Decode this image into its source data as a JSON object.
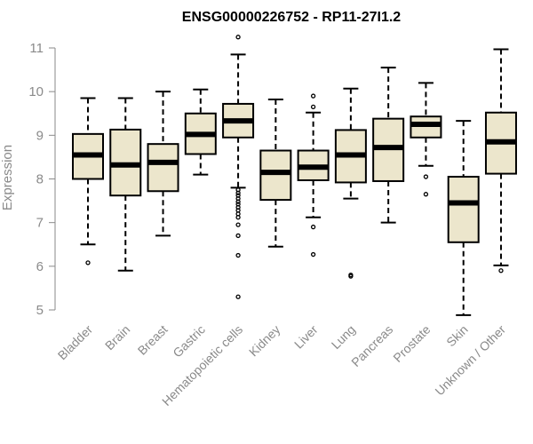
{
  "chart_data": {
    "type": "box",
    "title": "ENSG00000226752 - RP11-27I1.2",
    "xlabel": "",
    "ylabel": "Expression",
    "ylim": [
      4.8,
      11.2
    ],
    "yticks": [
      5,
      6,
      7,
      8,
      9,
      10,
      11
    ],
    "categories": [
      "Bladder",
      "Brain",
      "Breast",
      "Gastric",
      "Hematopoietic cells",
      "Kidney",
      "Liver",
      "Lung",
      "Pancreas",
      "Prostate",
      "Skin",
      "Unknown / Other"
    ],
    "series": [
      {
        "category": "Bladder",
        "whisker_low": 6.5,
        "q1": 8.0,
        "median": 8.55,
        "q3": 9.03,
        "whisker_high": 9.85,
        "outliers": [
          6.08
        ]
      },
      {
        "category": "Brain",
        "whisker_low": 5.9,
        "q1": 7.62,
        "median": 8.32,
        "q3": 9.13,
        "whisker_high": 9.85,
        "outliers": []
      },
      {
        "category": "Breast",
        "whisker_low": 6.7,
        "q1": 7.72,
        "median": 8.38,
        "q3": 8.8,
        "whisker_high": 10.0,
        "outliers": []
      },
      {
        "category": "Gastric",
        "whisker_low": 8.1,
        "q1": 8.57,
        "median": 9.02,
        "q3": 9.5,
        "whisker_high": 10.05,
        "outliers": []
      },
      {
        "category": "Hematopoietic cells",
        "whisker_low": 7.8,
        "q1": 8.95,
        "median": 9.33,
        "q3": 9.72,
        "whisker_high": 10.85,
        "outliers": [
          11.25,
          7.75,
          7.68,
          7.62,
          7.55,
          7.48,
          7.42,
          7.35,
          7.28,
          7.2,
          7.12,
          6.95,
          6.7,
          6.25,
          5.3
        ]
      },
      {
        "category": "Kidney",
        "whisker_low": 6.45,
        "q1": 7.52,
        "median": 8.15,
        "q3": 8.65,
        "whisker_high": 9.82,
        "outliers": []
      },
      {
        "category": "Liver",
        "whisker_low": 7.12,
        "q1": 7.97,
        "median": 8.27,
        "q3": 8.65,
        "whisker_high": 9.52,
        "outliers": [
          9.9,
          9.65,
          6.9,
          6.27
        ]
      },
      {
        "category": "Lung",
        "whisker_low": 7.55,
        "q1": 7.92,
        "median": 8.55,
        "q3": 9.12,
        "whisker_high": 10.07,
        "outliers": [
          5.8,
          5.77
        ]
      },
      {
        "category": "Pancreas",
        "whisker_low": 7.0,
        "q1": 7.95,
        "median": 8.72,
        "q3": 9.38,
        "whisker_high": 10.55,
        "outliers": []
      },
      {
        "category": "Prostate",
        "whisker_low": 8.3,
        "q1": 8.95,
        "median": 9.25,
        "q3": 9.43,
        "whisker_high": 10.2,
        "outliers": [
          8.05,
          7.65
        ]
      },
      {
        "category": "Skin",
        "whisker_low": 4.88,
        "q1": 6.55,
        "median": 7.45,
        "q3": 8.05,
        "whisker_high": 9.33,
        "outliers": []
      },
      {
        "category": "Unknown / Other",
        "whisker_low": 6.02,
        "q1": 8.12,
        "median": 8.85,
        "q3": 9.52,
        "whisker_high": 10.97,
        "outliers": [
          5.9
        ]
      }
    ]
  }
}
